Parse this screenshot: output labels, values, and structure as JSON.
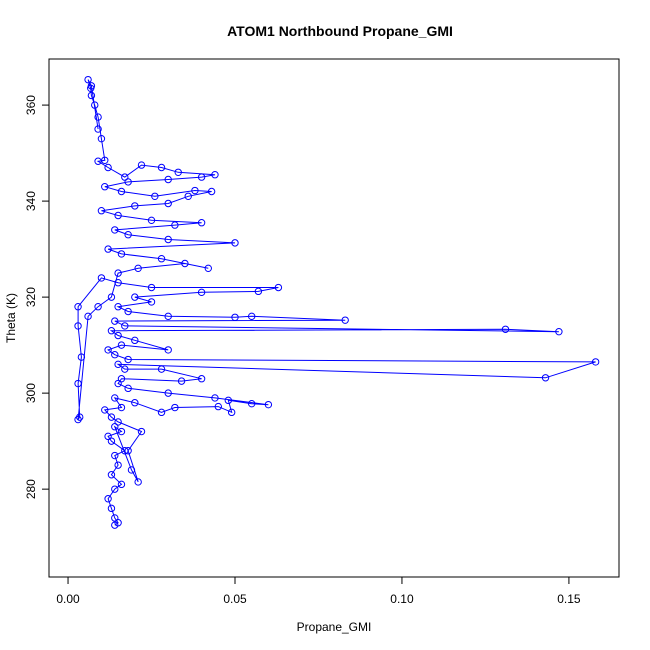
{
  "chart_data": {
    "type": "line",
    "marker": "circle",
    "color": "#0000ff",
    "title": "ATOM1 Northbound Propane_GMI",
    "x_label": "Propane_GMI",
    "y_label": "Theta (K)",
    "xlim": [
      -0.0057,
      0.165
    ],
    "ylim": [
      261.7,
      369.6
    ],
    "xticks": [
      {
        "value": 0,
        "label": "0.00"
      },
      0.05,
      {
        "value": 0.1,
        "label": "0.10"
      },
      0.15
    ],
    "yticks": [
      280,
      300,
      320,
      340,
      360
    ],
    "x": [
      0.014,
      0.015,
      0.014,
      0.013,
      0.012,
      0.014,
      0.016,
      0.013,
      0.015,
      0.014,
      0.017,
      0.013,
      0.012,
      0.016,
      0.014,
      0.019,
      0.021,
      0.018,
      0.022,
      0.015,
      0.013,
      0.011,
      0.016,
      0.014,
      0.02,
      0.028,
      0.032,
      0.045,
      0.049,
      0.048,
      0.055,
      0.06,
      0.044,
      0.03,
      0.018,
      0.015,
      0.016,
      0.034,
      0.04,
      0.028,
      0.017,
      0.015,
      0.143,
      0.158,
      0.018,
      0.014,
      0.012,
      0.016,
      0.03,
      0.02,
      0.015,
      0.013,
      0.131,
      0.147,
      0.017,
      0.014,
      0.083,
      0.055,
      0.05,
      0.03,
      0.018,
      0.015,
      0.025,
      0.02,
      0.04,
      0.057,
      0.063,
      0.025,
      0.015,
      0.01,
      0.003,
      0.003,
      0.004,
      0.003,
      0.0035,
      0.003,
      0.006,
      0.009,
      0.013,
      0.015,
      0.021,
      0.035,
      0.042,
      0.028,
      0.016,
      0.012,
      0.05,
      0.03,
      0.018,
      0.014,
      0.032,
      0.04,
      0.025,
      0.015,
      0.01,
      0.02,
      0.03,
      0.036,
      0.043,
      0.038,
      0.026,
      0.016,
      0.011,
      0.018,
      0.03,
      0.04,
      0.044,
      0.033,
      0.028,
      0.022,
      0.017,
      0.012,
      0.009,
      0.011,
      0.01,
      0.009,
      0.008,
      0.007,
      0.0068,
      0.006,
      0.007,
      0.009
    ],
    "y": [
      272.5,
      273,
      274,
      276,
      278,
      280,
      281,
      283,
      285,
      287,
      288,
      290,
      291,
      292,
      293,
      284,
      281.5,
      288,
      292,
      294,
      295,
      296.5,
      297,
      299,
      298,
      296,
      297,
      297.2,
      296,
      298.5,
      297.8,
      297.6,
      299,
      300,
      301,
      302,
      303,
      302.5,
      303,
      305,
      305,
      306,
      303.2,
      306.5,
      307,
      308,
      309,
      310,
      309,
      311,
      312,
      313,
      313.3,
      312.8,
      314,
      315,
      315.2,
      316,
      315.8,
      316,
      317,
      318,
      319,
      320,
      321,
      321.2,
      322,
      322,
      323,
      324,
      318,
      314,
      307.5,
      302,
      295,
      294.5,
      316,
      318,
      320,
      325,
      326,
      327,
      326,
      328,
      329,
      330,
      331.3,
      332,
      333,
      334,
      335,
      335.5,
      336,
      337,
      338,
      339,
      339.5,
      341,
      342,
      342.2,
      341,
      342,
      343,
      344,
      344.5,
      345,
      345.5,
      346,
      347,
      347.5,
      345,
      347,
      348.3,
      348.5,
      353,
      357.5,
      360,
      362,
      363.5,
      365.3,
      364,
      355
    ]
  }
}
